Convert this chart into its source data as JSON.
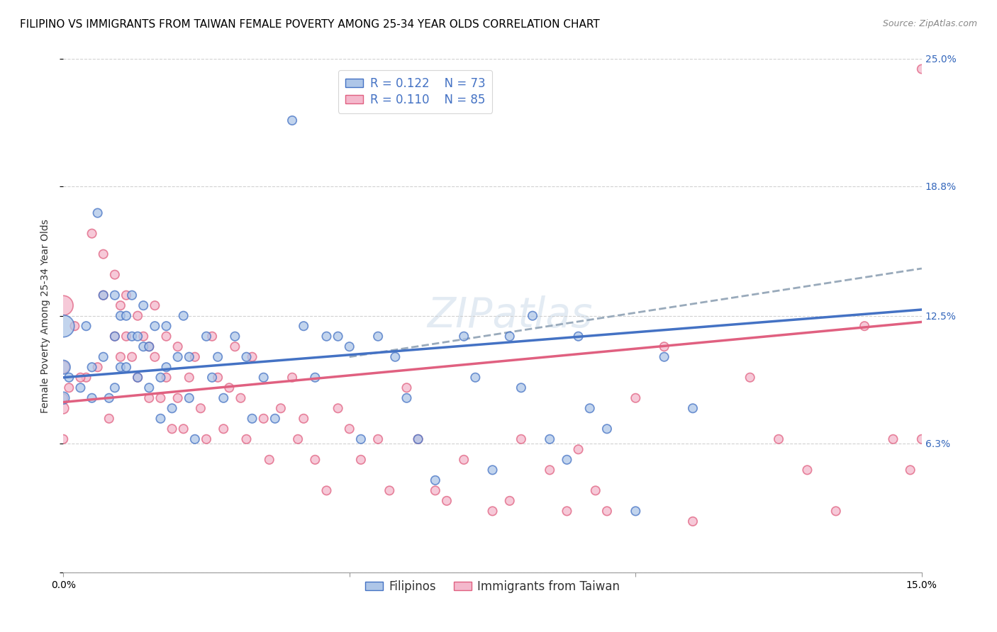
{
  "title": "FILIPINO VS IMMIGRANTS FROM TAIWAN FEMALE POVERTY AMONG 25-34 YEAR OLDS CORRELATION CHART",
  "source": "Source: ZipAtlas.com",
  "ylabel": "Female Poverty Among 25-34 Year Olds",
  "xmin": 0.0,
  "xmax": 0.15,
  "ymin": 0.0,
  "ymax": 0.25,
  "yticks": [
    0.0,
    0.063,
    0.125,
    0.188,
    0.25
  ],
  "ytick_labels": [
    "",
    "6.3%",
    "12.5%",
    "18.8%",
    "25.0%"
  ],
  "xticks": [
    0.0,
    0.05,
    0.1,
    0.15
  ],
  "xtick_labels": [
    "0.0%",
    "",
    "",
    "15.0%"
  ],
  "color_blue": "#aec6e8",
  "color_pink": "#f4b8cc",
  "color_blue_line": "#4472c4",
  "color_pink_line": "#e06080",
  "color_dashed": "#99aabb",
  "legend_R_blue": "R = 0.122",
  "legend_N_blue": "N = 73",
  "legend_R_pink": "R = 0.110",
  "legend_N_pink": "N = 85",
  "legend_label_blue": "Filipinos",
  "legend_label_pink": "Immigrants from Taiwan",
  "watermark": "ZIPatlas",
  "blue_scatter_x": [
    0.0,
    0.0,
    0.0,
    0.001,
    0.003,
    0.004,
    0.005,
    0.005,
    0.006,
    0.007,
    0.007,
    0.008,
    0.009,
    0.009,
    0.009,
    0.01,
    0.01,
    0.011,
    0.011,
    0.012,
    0.012,
    0.013,
    0.013,
    0.014,
    0.014,
    0.015,
    0.015,
    0.016,
    0.017,
    0.017,
    0.018,
    0.018,
    0.019,
    0.02,
    0.021,
    0.022,
    0.022,
    0.023,
    0.025,
    0.026,
    0.027,
    0.028,
    0.03,
    0.032,
    0.033,
    0.035,
    0.037,
    0.04,
    0.042,
    0.044,
    0.046,
    0.048,
    0.05,
    0.052,
    0.055,
    0.058,
    0.06,
    0.062,
    0.065,
    0.07,
    0.072,
    0.075,
    0.078,
    0.08,
    0.082,
    0.085,
    0.088,
    0.09,
    0.092,
    0.095,
    0.1,
    0.105,
    0.11
  ],
  "blue_scatter_y": [
    0.12,
    0.1,
    0.085,
    0.095,
    0.09,
    0.12,
    0.085,
    0.1,
    0.175,
    0.135,
    0.105,
    0.085,
    0.135,
    0.115,
    0.09,
    0.125,
    0.1,
    0.125,
    0.1,
    0.135,
    0.115,
    0.115,
    0.095,
    0.13,
    0.11,
    0.11,
    0.09,
    0.12,
    0.095,
    0.075,
    0.12,
    0.1,
    0.08,
    0.105,
    0.125,
    0.105,
    0.085,
    0.065,
    0.115,
    0.095,
    0.105,
    0.085,
    0.115,
    0.105,
    0.075,
    0.095,
    0.075,
    0.22,
    0.12,
    0.095,
    0.115,
    0.115,
    0.11,
    0.065,
    0.115,
    0.105,
    0.085,
    0.065,
    0.045,
    0.115,
    0.095,
    0.05,
    0.115,
    0.09,
    0.125,
    0.065,
    0.055,
    0.115,
    0.08,
    0.07,
    0.03,
    0.105,
    0.08
  ],
  "blue_scatter_size": [
    500,
    200,
    150,
    80,
    80,
    80,
    80,
    80,
    80,
    80,
    80,
    80,
    80,
    80,
    80,
    80,
    80,
    80,
    80,
    80,
    80,
    80,
    80,
    80,
    80,
    80,
    80,
    80,
    80,
    80,
    80,
    80,
    80,
    80,
    80,
    80,
    80,
    80,
    80,
    80,
    80,
    80,
    80,
    80,
    80,
    80,
    80,
    80,
    80,
    80,
    80,
    80,
    80,
    80,
    80,
    80,
    80,
    80,
    80,
    80,
    80,
    80,
    80,
    80,
    80,
    80,
    80,
    80,
    80,
    80,
    80,
    80,
    80
  ],
  "pink_scatter_x": [
    0.0,
    0.0,
    0.0,
    0.001,
    0.002,
    0.004,
    0.005,
    0.006,
    0.007,
    0.007,
    0.008,
    0.009,
    0.009,
    0.01,
    0.01,
    0.011,
    0.011,
    0.012,
    0.013,
    0.013,
    0.014,
    0.015,
    0.015,
    0.016,
    0.016,
    0.017,
    0.018,
    0.018,
    0.019,
    0.02,
    0.02,
    0.021,
    0.022,
    0.023,
    0.024,
    0.025,
    0.026,
    0.027,
    0.028,
    0.029,
    0.03,
    0.031,
    0.032,
    0.033,
    0.035,
    0.036,
    0.038,
    0.04,
    0.041,
    0.042,
    0.044,
    0.046,
    0.048,
    0.05,
    0.052,
    0.055,
    0.057,
    0.06,
    0.062,
    0.065,
    0.067,
    0.07,
    0.075,
    0.078,
    0.08,
    0.085,
    0.088,
    0.09,
    0.093,
    0.095,
    0.1,
    0.105,
    0.11,
    0.12,
    0.125,
    0.13,
    0.135,
    0.14,
    0.145,
    0.148,
    0.15,
    0.15,
    0.0,
    0.0,
    0.003
  ],
  "pink_scatter_y": [
    0.13,
    0.1,
    0.08,
    0.09,
    0.12,
    0.095,
    0.165,
    0.1,
    0.155,
    0.135,
    0.075,
    0.145,
    0.115,
    0.13,
    0.105,
    0.135,
    0.115,
    0.105,
    0.125,
    0.095,
    0.115,
    0.11,
    0.085,
    0.13,
    0.105,
    0.085,
    0.115,
    0.095,
    0.07,
    0.11,
    0.085,
    0.07,
    0.095,
    0.105,
    0.08,
    0.065,
    0.115,
    0.095,
    0.07,
    0.09,
    0.11,
    0.085,
    0.065,
    0.105,
    0.075,
    0.055,
    0.08,
    0.095,
    0.065,
    0.075,
    0.055,
    0.04,
    0.08,
    0.07,
    0.055,
    0.065,
    0.04,
    0.09,
    0.065,
    0.04,
    0.035,
    0.055,
    0.03,
    0.035,
    0.065,
    0.05,
    0.03,
    0.06,
    0.04,
    0.03,
    0.085,
    0.11,
    0.025,
    0.095,
    0.065,
    0.05,
    0.03,
    0.12,
    0.065,
    0.05,
    0.245,
    0.065,
    0.085,
    0.065,
    0.095
  ],
  "pink_scatter_size": [
    400,
    150,
    120,
    80,
    80,
    80,
    80,
    80,
    80,
    80,
    80,
    80,
    80,
    80,
    80,
    80,
    80,
    80,
    80,
    80,
    80,
    80,
    80,
    80,
    80,
    80,
    80,
    80,
    80,
    80,
    80,
    80,
    80,
    80,
    80,
    80,
    80,
    80,
    80,
    80,
    80,
    80,
    80,
    80,
    80,
    80,
    80,
    80,
    80,
    80,
    80,
    80,
    80,
    80,
    80,
    80,
    80,
    80,
    80,
    80,
    80,
    80,
    80,
    80,
    80,
    80,
    80,
    80,
    80,
    80,
    80,
    80,
    80,
    80,
    80,
    80,
    80,
    80,
    80,
    80,
    80,
    80,
    80,
    80,
    80
  ],
  "blue_trend_x": [
    0.0,
    0.15
  ],
  "blue_trend_y": [
    0.095,
    0.128
  ],
  "pink_trend_x": [
    0.0,
    0.15
  ],
  "pink_trend_y": [
    0.083,
    0.122
  ],
  "dashed_trend_x": [
    0.05,
    0.15
  ],
  "dashed_trend_y": [
    0.105,
    0.148
  ],
  "title_fontsize": 11,
  "axis_label_fontsize": 10,
  "tick_fontsize": 10,
  "legend_fontsize": 12,
  "source_fontsize": 9,
  "watermark_fontsize": 42,
  "watermark_color": "#c8d8e8",
  "watermark_alpha": 0.5,
  "right_yaxis_color": "#3366bb"
}
